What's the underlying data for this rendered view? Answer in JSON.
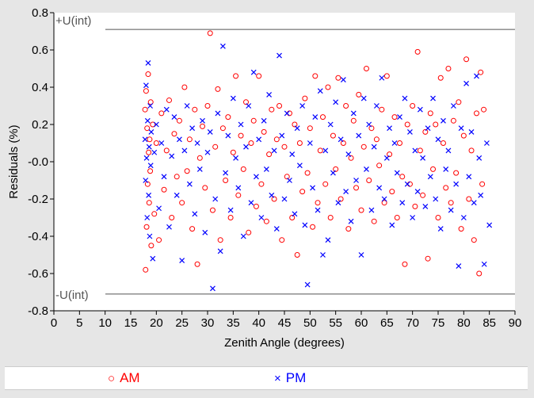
{
  "chart_data": {
    "type": "scatter",
    "xlabel": "Zenith Angle (degrees)",
    "ylabel": "Residuals (%)",
    "xlim": [
      0,
      90
    ],
    "ylim": [
      -0.8,
      0.8
    ],
    "xticks": [
      "0",
      "5",
      "10",
      "15",
      "20",
      "25",
      "30",
      "35",
      "40",
      "45",
      "50",
      "55",
      "60",
      "65",
      "70",
      "75",
      "80",
      "85",
      "90"
    ],
    "yticks": [
      "0.8",
      "0.6",
      "0.4",
      "0.2",
      "-0.0",
      "-0.2",
      "-0.4",
      "-0.6",
      "-0.8"
    ],
    "ytick_values": [
      0.8,
      0.6,
      0.4,
      0.2,
      0.0,
      -0.2,
      -0.4,
      -0.6,
      -0.8
    ],
    "xtick_values": [
      0,
      5,
      10,
      15,
      20,
      25,
      30,
      35,
      40,
      45,
      50,
      55,
      60,
      65,
      70,
      75,
      80,
      85,
      90
    ],
    "reference_lines": [
      {
        "label": "+U(int)",
        "y": 0.71
      },
      {
        "label": "-U(int)",
        "y": -0.71
      }
    ],
    "series": [
      {
        "name": "AM",
        "marker": "circle",
        "color": "#ff0000",
        "points": [
          [
            17.8,
            0.28
          ],
          [
            17.9,
            -0.58
          ],
          [
            18.0,
            0.38
          ],
          [
            18.1,
            -0.35
          ],
          [
            18.2,
            0.18
          ],
          [
            18.3,
            -0.12
          ],
          [
            18.4,
            0.47
          ],
          [
            18.5,
            0.05
          ],
          [
            18.6,
            -0.22
          ],
          [
            18.7,
            0.12
          ],
          [
            18.8,
            -0.05
          ],
          [
            18.9,
            0.32
          ],
          [
            19.0,
            -0.45
          ],
          [
            19.3,
            0.2
          ],
          [
            19.6,
            -0.28
          ],
          [
            20.0,
            0.1
          ],
          [
            20.5,
            -0.42
          ],
          [
            21.0,
            0.26
          ],
          [
            21.5,
            -0.15
          ],
          [
            22.0,
            0.06
          ],
          [
            22.5,
            0.33
          ],
          [
            23.0,
            -0.3
          ],
          [
            23.5,
            0.15
          ],
          [
            24.0,
            -0.08
          ],
          [
            24.5,
            0.22
          ],
          [
            25.0,
            -0.22
          ],
          [
            25.5,
            0.4
          ],
          [
            26.0,
            -0.05
          ],
          [
            26.5,
            0.12
          ],
          [
            27.0,
            -0.36
          ],
          [
            27.5,
            0.28
          ],
          [
            28.0,
            -0.55
          ],
          [
            28.5,
            0.02
          ],
          [
            29.0,
            0.19
          ],
          [
            29.5,
            -0.14
          ],
          [
            30.0,
            0.3
          ],
          [
            30.5,
            0.69
          ],
          [
            31.0,
            -0.26
          ],
          [
            31.5,
            0.08
          ],
          [
            32.0,
            0.39
          ],
          [
            32.5,
            -0.42
          ],
          [
            33.0,
            0.18
          ],
          [
            33.5,
            -0.1
          ],
          [
            34.0,
            0.24
          ],
          [
            34.5,
            -0.3
          ],
          [
            35.0,
            0.05
          ],
          [
            35.5,
            0.46
          ],
          [
            36.0,
            -0.18
          ],
          [
            36.5,
            0.14
          ],
          [
            37.0,
            -0.04
          ],
          [
            37.5,
            0.32
          ],
          [
            38.0,
            -0.38
          ],
          [
            38.5,
            0.1
          ],
          [
            39.0,
            0.22
          ],
          [
            39.5,
            -0.24
          ],
          [
            40.0,
            0.46
          ],
          [
            40.5,
            -0.12
          ],
          [
            41.0,
            0.16
          ],
          [
            41.5,
            -0.32
          ],
          [
            42.0,
            0.04
          ],
          [
            42.5,
            0.28
          ],
          [
            43.0,
            -0.2
          ],
          [
            43.5,
            0.12
          ],
          [
            44.0,
            0.3
          ],
          [
            44.5,
            -0.42
          ],
          [
            45.0,
            0.08
          ],
          [
            45.5,
            -0.08
          ],
          [
            46.0,
            0.26
          ],
          [
            46.5,
            -0.3
          ],
          [
            47.0,
            0.2
          ],
          [
            47.5,
            -0.5
          ],
          [
            48.0,
            0.1
          ],
          [
            48.5,
            -0.16
          ],
          [
            49.0,
            0.34
          ],
          [
            49.5,
            -0.06
          ],
          [
            50.0,
            0.18
          ],
          [
            50.5,
            -0.35
          ],
          [
            51.0,
            0.46
          ],
          [
            51.5,
            -0.22
          ],
          [
            52.0,
            0.06
          ],
          [
            52.5,
            0.24
          ],
          [
            53.0,
            -0.12
          ],
          [
            53.5,
            0.4
          ],
          [
            54.0,
            -0.3
          ],
          [
            54.5,
            0.14
          ],
          [
            55.0,
            -0.04
          ],
          [
            55.5,
            0.45
          ],
          [
            56.0,
            -0.2
          ],
          [
            56.5,
            0.1
          ],
          [
            57.0,
            0.3
          ],
          [
            57.5,
            -0.36
          ],
          [
            58.0,
            0.02
          ],
          [
            58.5,
            0.22
          ],
          [
            59.0,
            -0.14
          ],
          [
            59.5,
            0.36
          ],
          [
            60.0,
            -0.26
          ],
          [
            60.5,
            0.08
          ],
          [
            61.0,
            0.5
          ],
          [
            61.5,
            -0.1
          ],
          [
            62.0,
            0.18
          ],
          [
            62.5,
            -0.32
          ],
          [
            63.0,
            0.12
          ],
          [
            63.5,
            -0.02
          ],
          [
            64.0,
            0.28
          ],
          [
            64.5,
            -0.22
          ],
          [
            65.0,
            0.46
          ],
          [
            65.5,
            0.04
          ],
          [
            66.0,
            -0.16
          ],
          [
            66.5,
            0.24
          ],
          [
            67.0,
            -0.3
          ],
          [
            67.5,
            0.1
          ],
          [
            68.0,
            -0.08
          ],
          [
            68.5,
            -0.55
          ],
          [
            69.0,
            0.2
          ],
          [
            69.5,
            -0.12
          ],
          [
            70.0,
            0.3
          ],
          [
            70.5,
            -0.24
          ],
          [
            71.0,
            0.59
          ],
          [
            71.5,
            0.06
          ],
          [
            72.0,
            -0.18
          ],
          [
            72.5,
            0.16
          ],
          [
            73.0,
            -0.52
          ],
          [
            73.5,
            0.26
          ],
          [
            74.0,
            -0.04
          ],
          [
            74.5,
            0.2
          ],
          [
            75.0,
            -0.3
          ],
          [
            75.5,
            0.45
          ],
          [
            76.0,
            0.1
          ],
          [
            76.5,
            -0.14
          ],
          [
            77.0,
            0.5
          ],
          [
            77.5,
            -0.22
          ],
          [
            78.0,
            0.22
          ],
          [
            78.5,
            -0.06
          ],
          [
            79.0,
            0.32
          ],
          [
            79.5,
            -0.36
          ],
          [
            80.0,
            0.14
          ],
          [
            80.5,
            0.55
          ],
          [
            81.0,
            -0.2
          ],
          [
            81.5,
            0.06
          ],
          [
            82.0,
            -0.42
          ],
          [
            82.5,
            0.26
          ],
          [
            83.0,
            -0.6
          ],
          [
            83.3,
            0.48
          ],
          [
            83.6,
            -0.12
          ],
          [
            83.9,
            0.28
          ]
        ]
      },
      {
        "name": "PM",
        "marker": "x",
        "color": "#0000ff",
        "points": [
          [
            17.8,
            0.12
          ],
          [
            17.9,
            -0.1
          ],
          [
            18.0,
            0.41
          ],
          [
            18.1,
            0.02
          ],
          [
            18.2,
            -0.3
          ],
          [
            18.3,
            0.22
          ],
          [
            18.4,
            0.53
          ],
          [
            18.5,
            -0.18
          ],
          [
            18.6,
            0.08
          ],
          [
            18.7,
            -0.4
          ],
          [
            18.8,
            0.3
          ],
          [
            18.9,
            -0.02
          ],
          [
            19.0,
            0.16
          ],
          [
            19.3,
            -0.52
          ],
          [
            19.6,
            0.05
          ],
          [
            20.0,
            0.2
          ],
          [
            20.5,
            -0.25
          ],
          [
            21.0,
            0.1
          ],
          [
            21.5,
            -0.08
          ],
          [
            22.0,
            0.28
          ],
          [
            22.5,
            -0.35
          ],
          [
            23.0,
            0.03
          ],
          [
            23.5,
            0.24
          ],
          [
            24.0,
            -0.18
          ],
          [
            24.5,
            0.12
          ],
          [
            25.0,
            -0.53
          ],
          [
            25.5,
            0.06
          ],
          [
            26.0,
            0.3
          ],
          [
            26.5,
            -0.12
          ],
          [
            27.0,
            0.18
          ],
          [
            27.5,
            -0.28
          ],
          [
            28.0,
            0.1
          ],
          [
            28.5,
            -0.04
          ],
          [
            29.0,
            0.22
          ],
          [
            29.5,
            -0.38
          ],
          [
            30.0,
            0.05
          ],
          [
            30.5,
            0.16
          ],
          [
            31.0,
            -0.68
          ],
          [
            31.5,
            -0.2
          ],
          [
            32.0,
            0.26
          ],
          [
            32.5,
            -0.48
          ],
          [
            33.0,
            0.62
          ],
          [
            33.5,
            -0.06
          ],
          [
            34.0,
            0.14
          ],
          [
            34.5,
            -0.26
          ],
          [
            35.0,
            0.34
          ],
          [
            35.5,
            0.02
          ],
          [
            36.0,
            -0.14
          ],
          [
            36.5,
            0.2
          ],
          [
            37.0,
            -0.4
          ],
          [
            37.5,
            0.08
          ],
          [
            38.0,
            0.3
          ],
          [
            38.5,
            -0.22
          ],
          [
            39.0,
            0.48
          ],
          [
            39.5,
            -0.08
          ],
          [
            40.0,
            0.12
          ],
          [
            40.5,
            -0.3
          ],
          [
            41.0,
            0.22
          ],
          [
            41.5,
            -0.04
          ],
          [
            42.0,
            0.36
          ],
          [
            42.5,
            -0.18
          ],
          [
            43.0,
            0.06
          ],
          [
            43.5,
            -0.36
          ],
          [
            44.0,
            0.57
          ],
          [
            44.5,
            0.14
          ],
          [
            45.0,
            -0.2
          ],
          [
            45.5,
            0.26
          ],
          [
            46.0,
            -0.1
          ],
          [
            46.5,
            0.04
          ],
          [
            47.0,
            -0.28
          ],
          [
            47.5,
            0.18
          ],
          [
            48.0,
            -0.02
          ],
          [
            48.5,
            0.3
          ],
          [
            49.0,
            -0.34
          ],
          [
            49.5,
            -0.66
          ],
          [
            50.0,
            0.1
          ],
          [
            50.5,
            -0.14
          ],
          [
            51.0,
            0.24
          ],
          [
            51.5,
            -0.26
          ],
          [
            52.0,
            0.38
          ],
          [
            52.5,
            -0.5
          ],
          [
            53.0,
            0.06
          ],
          [
            53.5,
            -0.42
          ],
          [
            54.0,
            0.2
          ],
          [
            54.5,
            -0.06
          ],
          [
            55.0,
            0.32
          ],
          [
            55.5,
            -0.22
          ],
          [
            56.0,
            0.12
          ],
          [
            56.5,
            0.44
          ],
          [
            57.0,
            -0.16
          ],
          [
            57.5,
            0.04
          ],
          [
            58.0,
            -0.32
          ],
          [
            58.5,
            0.26
          ],
          [
            59.0,
            -0.1
          ],
          [
            59.5,
            0.14
          ],
          [
            60.0,
            -0.5
          ],
          [
            60.5,
            0.34
          ],
          [
            61.0,
            -0.04
          ],
          [
            61.5,
            0.2
          ],
          [
            62.0,
            -0.26
          ],
          [
            62.5,
            0.08
          ],
          [
            63.0,
            0.3
          ],
          [
            63.5,
            -0.14
          ],
          [
            64.0,
            0.45
          ],
          [
            64.5,
            -0.2
          ],
          [
            65.0,
            0.02
          ],
          [
            65.5,
            0.18
          ],
          [
            66.0,
            -0.34
          ],
          [
            66.5,
            0.1
          ],
          [
            67.0,
            -0.06
          ],
          [
            67.5,
            0.24
          ],
          [
            68.0,
            -0.22
          ],
          [
            68.5,
            0.34
          ],
          [
            69.0,
            -0.12
          ],
          [
            69.5,
            0.16
          ],
          [
            70.0,
            -0.3
          ],
          [
            70.5,
            0.06
          ],
          [
            71.0,
            -0.16
          ],
          [
            71.5,
            0.28
          ],
          [
            72.0,
            0.02
          ],
          [
            72.5,
            -0.24
          ],
          [
            73.0,
            0.18
          ],
          [
            73.5,
            -0.08
          ],
          [
            74.0,
            0.34
          ],
          [
            74.5,
            -0.2
          ],
          [
            75.0,
            0.12
          ],
          [
            75.5,
            -0.36
          ],
          [
            76.0,
            0.22
          ],
          [
            76.5,
            -0.04
          ],
          [
            77.0,
            0.06
          ],
          [
            77.5,
            -0.26
          ],
          [
            78.0,
            0.3
          ],
          [
            78.5,
            -0.12
          ],
          [
            79.0,
            -0.56
          ],
          [
            79.5,
            0.18
          ],
          [
            80.0,
            -0.3
          ],
          [
            80.5,
            0.42
          ],
          [
            81.0,
            -0.08
          ],
          [
            81.5,
            0.16
          ],
          [
            82.0,
            -0.22
          ],
          [
            82.5,
            0.46
          ],
          [
            83.0,
            0.02
          ],
          [
            83.3,
            -0.18
          ],
          [
            84.0,
            -0.55
          ],
          [
            84.5,
            0.1
          ],
          [
            85.0,
            -0.34
          ]
        ]
      }
    ]
  }
}
